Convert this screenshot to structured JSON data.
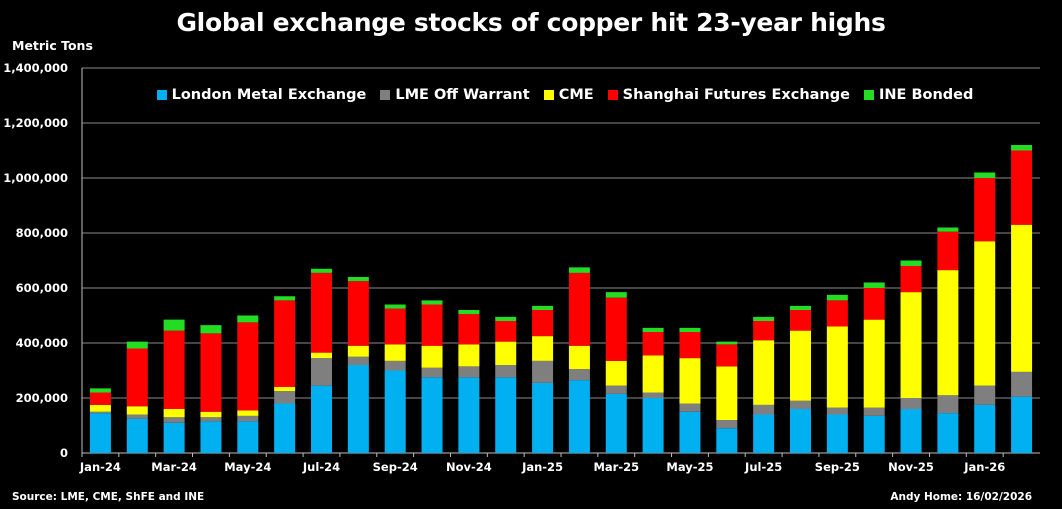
{
  "title": "Global exchange stocks of copper hit 23-year highs",
  "footer": {
    "source": "Source: LME, CME, ShFE and INE",
    "credit": "Andy Home: 16/02/2026"
  },
  "chart_data": {
    "type": "bar",
    "stacked": true,
    "title": "Global exchange stocks of copper hit 23-year highs",
    "ylabel": "Metric Tons",
    "xlabel": "",
    "ylim": [
      0,
      1400000
    ],
    "yticks": [
      0,
      200000,
      400000,
      600000,
      800000,
      1000000,
      1200000,
      1400000
    ],
    "ytick_labels": [
      "0",
      "200,000",
      "400,000",
      "600,000",
      "800,000",
      "1,000,000",
      "1,200,000",
      "1,400,000"
    ],
    "grid": true,
    "legend_position": "top",
    "categories": [
      "Jan-24",
      "Feb-24",
      "Mar-24",
      "Apr-24",
      "May-24",
      "Jun-24",
      "Jul-24",
      "Aug-24",
      "Sep-24",
      "Oct-24",
      "Nov-24",
      "Dec-24",
      "Jan-25",
      "Feb-25",
      "Mar-25",
      "Apr-25",
      "May-25",
      "Jun-25",
      "Jul-25",
      "Aug-25",
      "Sep-25",
      "Oct-25",
      "Nov-25",
      "Dec-25",
      "Jan-26",
      "Feb-26"
    ],
    "xtick_labels": [
      "Jan-24",
      "",
      "Mar-24",
      "",
      "May-24",
      "",
      "Jul-24",
      "",
      "Sep-24",
      "",
      "Nov-24",
      "",
      "Jan-25",
      "",
      "Mar-25",
      "",
      "May-25",
      "",
      "Jul-25",
      "",
      "Sep-25",
      "",
      "Nov-25",
      "",
      "Jan-26",
      ""
    ],
    "series": [
      {
        "name": "London Metal Exchange",
        "color": "#00B0F0",
        "values": [
          145000,
          125000,
          110000,
          115000,
          115000,
          180000,
          245000,
          320000,
          300000,
          275000,
          275000,
          275000,
          255000,
          265000,
          215000,
          200000,
          150000,
          90000,
          140000,
          160000,
          140000,
          135000,
          160000,
          145000,
          175000,
          205000
        ]
      },
      {
        "name": "LME Off Warrant",
        "color": "#7F7F7F",
        "values": [
          5000,
          15000,
          20000,
          15000,
          20000,
          45000,
          100000,
          30000,
          35000,
          35000,
          40000,
          45000,
          80000,
          40000,
          30000,
          20000,
          30000,
          30000,
          35000,
          30000,
          25000,
          30000,
          40000,
          65000,
          70000,
          90000
        ]
      },
      {
        "name": "CME",
        "color": "#FFFF00",
        "values": [
          25000,
          30000,
          30000,
          20000,
          20000,
          15000,
          20000,
          40000,
          60000,
          80000,
          80000,
          85000,
          90000,
          85000,
          90000,
          135000,
          165000,
          195000,
          235000,
          255000,
          295000,
          320000,
          385000,
          455000,
          525000,
          535000
        ]
      },
      {
        "name": "Shanghai Futures Exchange",
        "color": "#FF0000",
        "values": [
          45000,
          210000,
          285000,
          285000,
          320000,
          315000,
          290000,
          235000,
          130000,
          150000,
          110000,
          75000,
          95000,
          265000,
          230000,
          85000,
          95000,
          80000,
          70000,
          75000,
          95000,
          115000,
          95000,
          140000,
          230000,
          270000
        ]
      },
      {
        "name": "INE Bonded",
        "color": "#22DD22",
        "values": [
          15000,
          25000,
          40000,
          30000,
          25000,
          15000,
          15000,
          15000,
          15000,
          15000,
          15000,
          15000,
          15000,
          20000,
          20000,
          15000,
          15000,
          10000,
          15000,
          15000,
          20000,
          20000,
          20000,
          15000,
          20000,
          20000
        ]
      }
    ]
  }
}
